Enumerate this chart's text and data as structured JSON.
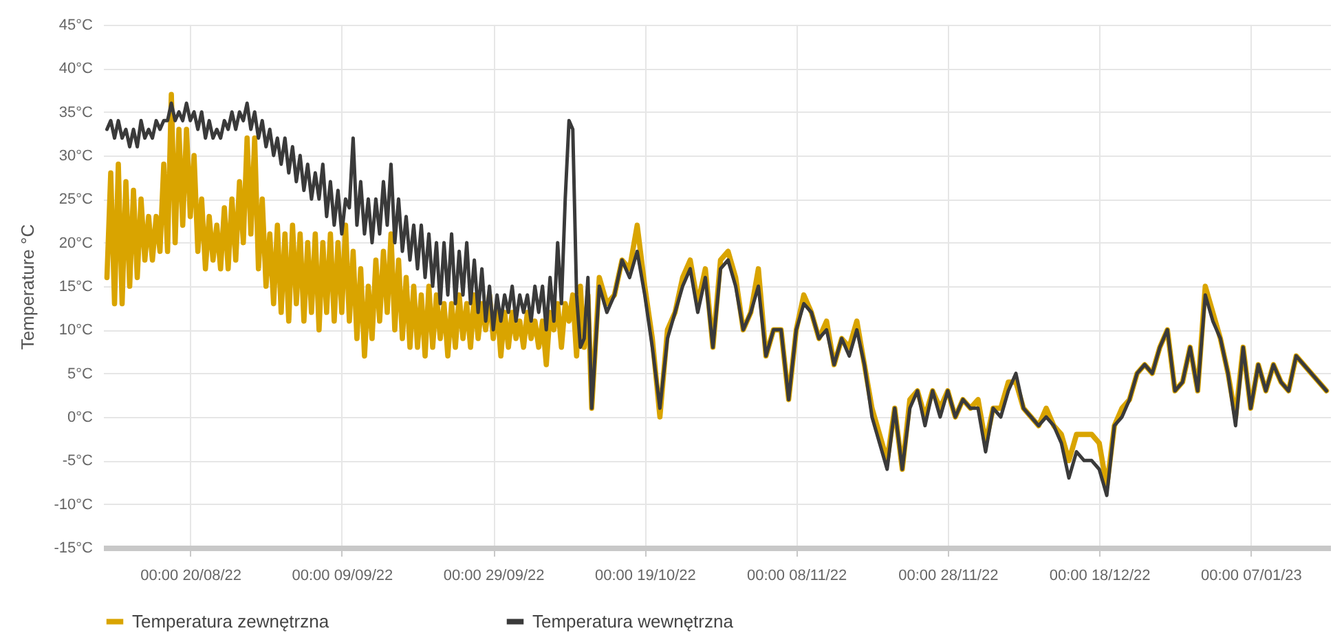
{
  "chart_data": {
    "type": "line",
    "ylabel": "Temperature °C",
    "x": [
      "2022-08-09T00:00",
      "2022-08-09T12:00",
      "2022-08-10T00:00",
      "2022-08-10T12:00",
      "2022-08-11T00:00",
      "2022-08-11T12:00",
      "2022-08-12T00:00",
      "2022-08-12T12:00",
      "2022-08-13T00:00",
      "2022-08-13T12:00",
      "2022-08-14T00:00",
      "2022-08-14T12:00",
      "2022-08-15T00:00",
      "2022-08-15T12:00",
      "2022-08-16T00:00",
      "2022-08-16T12:00",
      "2022-08-17T00:00",
      "2022-08-17T12:00",
      "2022-08-18T00:00",
      "2022-08-18T12:00",
      "2022-08-19T00:00",
      "2022-08-19T12:00",
      "2022-08-20T00:00",
      "2022-08-20T12:00",
      "2022-08-21T00:00",
      "2022-08-21T12:00",
      "2022-08-22T00:00",
      "2022-08-22T12:00",
      "2022-08-23T00:00",
      "2022-08-23T12:00",
      "2022-08-24T00:00",
      "2022-08-24T12:00",
      "2022-08-25T00:00",
      "2022-08-25T12:00",
      "2022-08-26T00:00",
      "2022-08-26T12:00",
      "2022-08-27T00:00",
      "2022-08-27T12:00",
      "2022-08-28T00:00",
      "2022-08-28T12:00",
      "2022-08-29T00:00",
      "2022-08-29T12:00",
      "2022-08-30T00:00",
      "2022-08-30T12:00",
      "2022-08-31T00:00",
      "2022-08-31T12:00",
      "2022-09-01T00:00",
      "2022-09-01T12:00",
      "2022-09-02T00:00",
      "2022-09-02T12:00",
      "2022-09-03T00:00",
      "2022-09-03T12:00",
      "2022-09-04T00:00",
      "2022-09-04T12:00",
      "2022-09-05T00:00",
      "2022-09-05T12:00",
      "2022-09-06T00:00",
      "2022-09-06T12:00",
      "2022-09-07T00:00",
      "2022-09-07T12:00",
      "2022-09-08T00:00",
      "2022-09-08T12:00",
      "2022-09-09T00:00",
      "2022-09-09T12:00",
      "2022-09-10T00:00",
      "2022-09-10T12:00",
      "2022-09-11T00:00",
      "2022-09-11T12:00",
      "2022-09-12T00:00",
      "2022-09-12T12:00",
      "2022-09-13T00:00",
      "2022-09-13T12:00",
      "2022-09-14T00:00",
      "2022-09-14T12:00",
      "2022-09-15T00:00",
      "2022-09-15T12:00",
      "2022-09-16T00:00",
      "2022-09-16T12:00",
      "2022-09-17T00:00",
      "2022-09-17T12:00",
      "2022-09-18T00:00",
      "2022-09-18T12:00",
      "2022-09-19T00:00",
      "2022-09-19T12:00",
      "2022-09-20T00:00",
      "2022-09-20T12:00",
      "2022-09-21T00:00",
      "2022-09-21T12:00",
      "2022-09-22T00:00",
      "2022-09-22T12:00",
      "2022-09-23T00:00",
      "2022-09-23T12:00",
      "2022-09-24T00:00",
      "2022-09-24T12:00",
      "2022-09-25T00:00",
      "2022-09-25T12:00",
      "2022-09-26T00:00",
      "2022-09-26T12:00",
      "2022-09-27T00:00",
      "2022-09-27T12:00",
      "2022-09-28T00:00",
      "2022-09-28T12:00",
      "2022-09-29T00:00",
      "2022-09-29T12:00",
      "2022-09-30T00:00",
      "2022-09-30T12:00",
      "2022-10-01T00:00",
      "2022-10-01T12:00",
      "2022-10-02T00:00",
      "2022-10-02T12:00",
      "2022-10-03T00:00",
      "2022-10-03T12:00",
      "2022-10-04T00:00",
      "2022-10-04T12:00",
      "2022-10-05T00:00",
      "2022-10-05T12:00",
      "2022-10-06T00:00",
      "2022-10-06T12:00",
      "2022-10-07T00:00",
      "2022-10-07T12:00",
      "2022-10-08T00:00",
      "2022-10-08T12:00",
      "2022-10-09T00:00",
      "2022-10-09T12:00",
      "2022-10-10T00:00",
      "2022-10-10T12:00",
      "2022-10-11T00:00",
      "2022-10-11T12:00",
      "2022-10-12",
      "2022-10-13",
      "2022-10-14",
      "2022-10-15",
      "2022-10-16",
      "2022-10-17",
      "2022-10-18",
      "2022-10-19",
      "2022-10-20",
      "2022-10-21",
      "2022-10-22",
      "2022-10-23",
      "2022-10-24",
      "2022-10-25",
      "2022-10-26",
      "2022-10-27",
      "2022-10-28",
      "2022-10-29",
      "2022-10-30",
      "2022-10-31",
      "2022-11-01",
      "2022-11-02",
      "2022-11-03",
      "2022-11-04",
      "2022-11-05",
      "2022-11-06",
      "2022-11-07",
      "2022-11-08",
      "2022-11-09",
      "2022-11-10",
      "2022-11-11",
      "2022-11-12",
      "2022-11-13",
      "2022-11-14",
      "2022-11-15",
      "2022-11-16",
      "2022-11-17",
      "2022-11-18",
      "2022-11-19",
      "2022-11-20",
      "2022-11-21",
      "2022-11-22",
      "2022-11-23",
      "2022-11-24",
      "2022-11-25",
      "2022-11-26",
      "2022-11-27",
      "2022-11-28",
      "2022-11-29",
      "2022-11-30",
      "2022-12-01",
      "2022-12-02",
      "2022-12-03",
      "2022-12-04",
      "2022-12-05",
      "2022-12-06",
      "2022-12-07",
      "2022-12-08",
      "2022-12-09",
      "2022-12-10",
      "2022-12-11",
      "2022-12-12",
      "2022-12-13",
      "2022-12-14",
      "2022-12-15",
      "2022-12-16",
      "2022-12-17",
      "2022-12-18",
      "2022-12-19",
      "2022-12-20",
      "2022-12-21",
      "2022-12-22",
      "2022-12-23",
      "2022-12-24",
      "2022-12-25",
      "2022-12-26",
      "2022-12-27",
      "2022-12-28",
      "2022-12-29",
      "2022-12-30",
      "2022-12-31",
      "2023-01-01",
      "2023-01-02",
      "2023-01-03",
      "2023-01-04",
      "2023-01-05",
      "2023-01-06",
      "2023-01-07",
      "2023-01-08",
      "2023-01-09",
      "2023-01-10",
      "2023-01-11",
      "2023-01-12",
      "2023-01-13",
      "2023-01-14",
      "2023-01-15",
      "2023-01-16",
      "2023-01-17"
    ],
    "series": [
      {
        "name": "Temperatura zewnętrzna",
        "color": "#d9a400",
        "values": [
          16,
          28,
          13,
          29,
          13,
          27,
          15,
          26,
          16,
          25,
          18,
          23,
          18,
          23,
          19,
          29,
          19,
          37,
          20,
          33,
          22,
          33,
          23,
          30,
          19,
          25,
          17,
          23,
          18,
          22,
          17,
          24,
          17,
          25,
          18,
          27,
          20,
          32,
          21,
          32,
          17,
          25,
          15,
          21,
          13,
          22,
          12,
          21,
          11,
          22,
          13,
          21,
          11,
          20,
          12,
          21,
          10,
          20,
          12,
          21,
          11,
          20,
          12,
          22,
          11,
          19,
          9,
          17,
          7,
          15,
          9,
          18,
          11,
          19,
          12,
          21,
          10,
          18,
          9,
          16,
          8,
          15,
          8,
          14,
          7,
          15,
          8,
          14,
          9,
          13,
          7,
          13,
          8,
          14,
          9,
          13,
          8,
          14,
          9,
          13,
          10,
          14,
          9,
          13,
          7,
          12,
          8,
          12,
          9,
          11,
          8,
          12,
          9,
          11,
          8,
          11,
          6,
          12,
          10,
          13,
          8,
          13,
          11,
          14,
          7,
          15,
          8,
          14,
          1,
          16,
          13,
          14,
          18,
          17,
          22,
          15,
          9,
          0,
          10,
          12,
          16,
          18,
          13,
          17,
          8,
          18,
          19,
          16,
          10,
          12,
          17,
          7,
          10,
          10,
          2,
          10,
          14,
          12,
          9,
          11,
          6,
          9,
          8,
          11,
          6,
          1,
          -2,
          -5,
          1,
          -6,
          2,
          3,
          0,
          3,
          1,
          3,
          0,
          2,
          1,
          2,
          -3,
          1,
          1,
          4,
          4,
          1,
          0,
          -1,
          1,
          -1,
          -2,
          -5,
          -2,
          -2,
          -2,
          -3,
          -8,
          -1,
          1,
          2,
          5,
          6,
          5,
          8,
          10,
          3,
          4,
          8,
          3,
          15,
          12,
          9,
          5,
          0,
          8,
          1,
          6,
          3,
          6,
          4,
          3,
          7,
          6,
          5,
          4,
          3
        ]
      },
      {
        "name": "Temperatura wewnętrzna",
        "color": "#3a3a3a",
        "values": [
          33,
          34,
          32,
          34,
          32,
          33,
          31,
          33,
          31,
          34,
          32,
          33,
          32,
          34,
          33,
          34,
          34,
          36,
          34,
          35,
          34,
          36,
          34,
          35,
          33,
          35,
          32,
          34,
          32,
          33,
          32,
          34,
          33,
          35,
          33,
          35,
          34,
          36,
          33,
          35,
          32,
          34,
          31,
          33,
          30,
          32,
          29,
          32,
          28,
          31,
          27,
          30,
          26,
          29,
          25,
          28,
          25,
          29,
          23,
          27,
          22,
          26,
          21,
          25,
          24,
          32,
          22,
          27,
          21,
          25,
          20,
          25,
          21,
          27,
          22,
          29,
          20,
          25,
          19,
          23,
          18,
          22,
          17,
          22,
          16,
          21,
          15,
          20,
          13,
          20,
          14,
          21,
          13,
          19,
          14,
          20,
          13,
          18,
          12,
          17,
          11,
          15,
          10,
          14,
          11,
          14,
          12,
          15,
          11,
          14,
          12,
          14,
          11,
          15,
          12,
          15,
          10,
          16,
          11,
          20,
          13,
          25,
          34,
          33,
          14,
          8,
          9,
          16,
          1,
          15,
          12,
          14,
          18,
          16,
          19,
          14,
          8,
          1,
          9,
          12,
          15,
          17,
          12,
          16,
          8,
          17,
          18,
          15,
          10,
          12,
          15,
          7,
          10,
          10,
          2,
          10,
          13,
          12,
          9,
          10,
          6,
          9,
          7,
          10,
          6,
          0,
          -3,
          -6,
          1,
          -6,
          1,
          3,
          -1,
          3,
          0,
          3,
          0,
          2,
          1,
          1,
          -4,
          1,
          0,
          3,
          5,
          1,
          0,
          -1,
          0,
          -1,
          -3,
          -7,
          -4,
          -5,
          -5,
          -6,
          -9,
          -1,
          0,
          2,
          5,
          6,
          5,
          8,
          10,
          3,
          4,
          8,
          3,
          14,
          11,
          9,
          5,
          -1,
          8,
          1,
          6,
          3,
          6,
          4,
          3,
          7,
          6,
          5,
          4,
          3
        ]
      }
    ],
    "xlim": [
      "2022-08-08T12:00",
      "2023-01-17T12:00"
    ],
    "xticks": [
      {
        "value": "2022-08-20",
        "label": "00:00 20/08/22"
      },
      {
        "value": "2022-09-09",
        "label": "00:00 09/09/22"
      },
      {
        "value": "2022-09-29",
        "label": "00:00 29/09/22"
      },
      {
        "value": "2022-10-19",
        "label": "00:00 19/10/22"
      },
      {
        "value": "2022-11-08",
        "label": "00:00 08/11/22"
      },
      {
        "value": "2022-11-28",
        "label": "00:00 28/11/22"
      },
      {
        "value": "2022-12-18",
        "label": "00:00 18/12/22"
      },
      {
        "value": "2023-01-07",
        "label": "00:00 07/01/23"
      }
    ],
    "ylim": [
      -15,
      45
    ],
    "yticks": [
      {
        "value": -15,
        "label": "-15°C"
      },
      {
        "value": -10,
        "label": "-10°C"
      },
      {
        "value": -5,
        "label": "-5°C"
      },
      {
        "value": 0,
        "label": "0°C"
      },
      {
        "value": 5,
        "label": "5°C"
      },
      {
        "value": 10,
        "label": "10°C"
      },
      {
        "value": 15,
        "label": "15°C"
      },
      {
        "value": 20,
        "label": "20°C"
      },
      {
        "value": 25,
        "label": "25°C"
      },
      {
        "value": 30,
        "label": "30°C"
      },
      {
        "value": 35,
        "label": "35°C"
      },
      {
        "value": 40,
        "label": "40°C"
      },
      {
        "value": 45,
        "label": "45°C"
      }
    ],
    "grid": true,
    "legend": "bottom"
  }
}
